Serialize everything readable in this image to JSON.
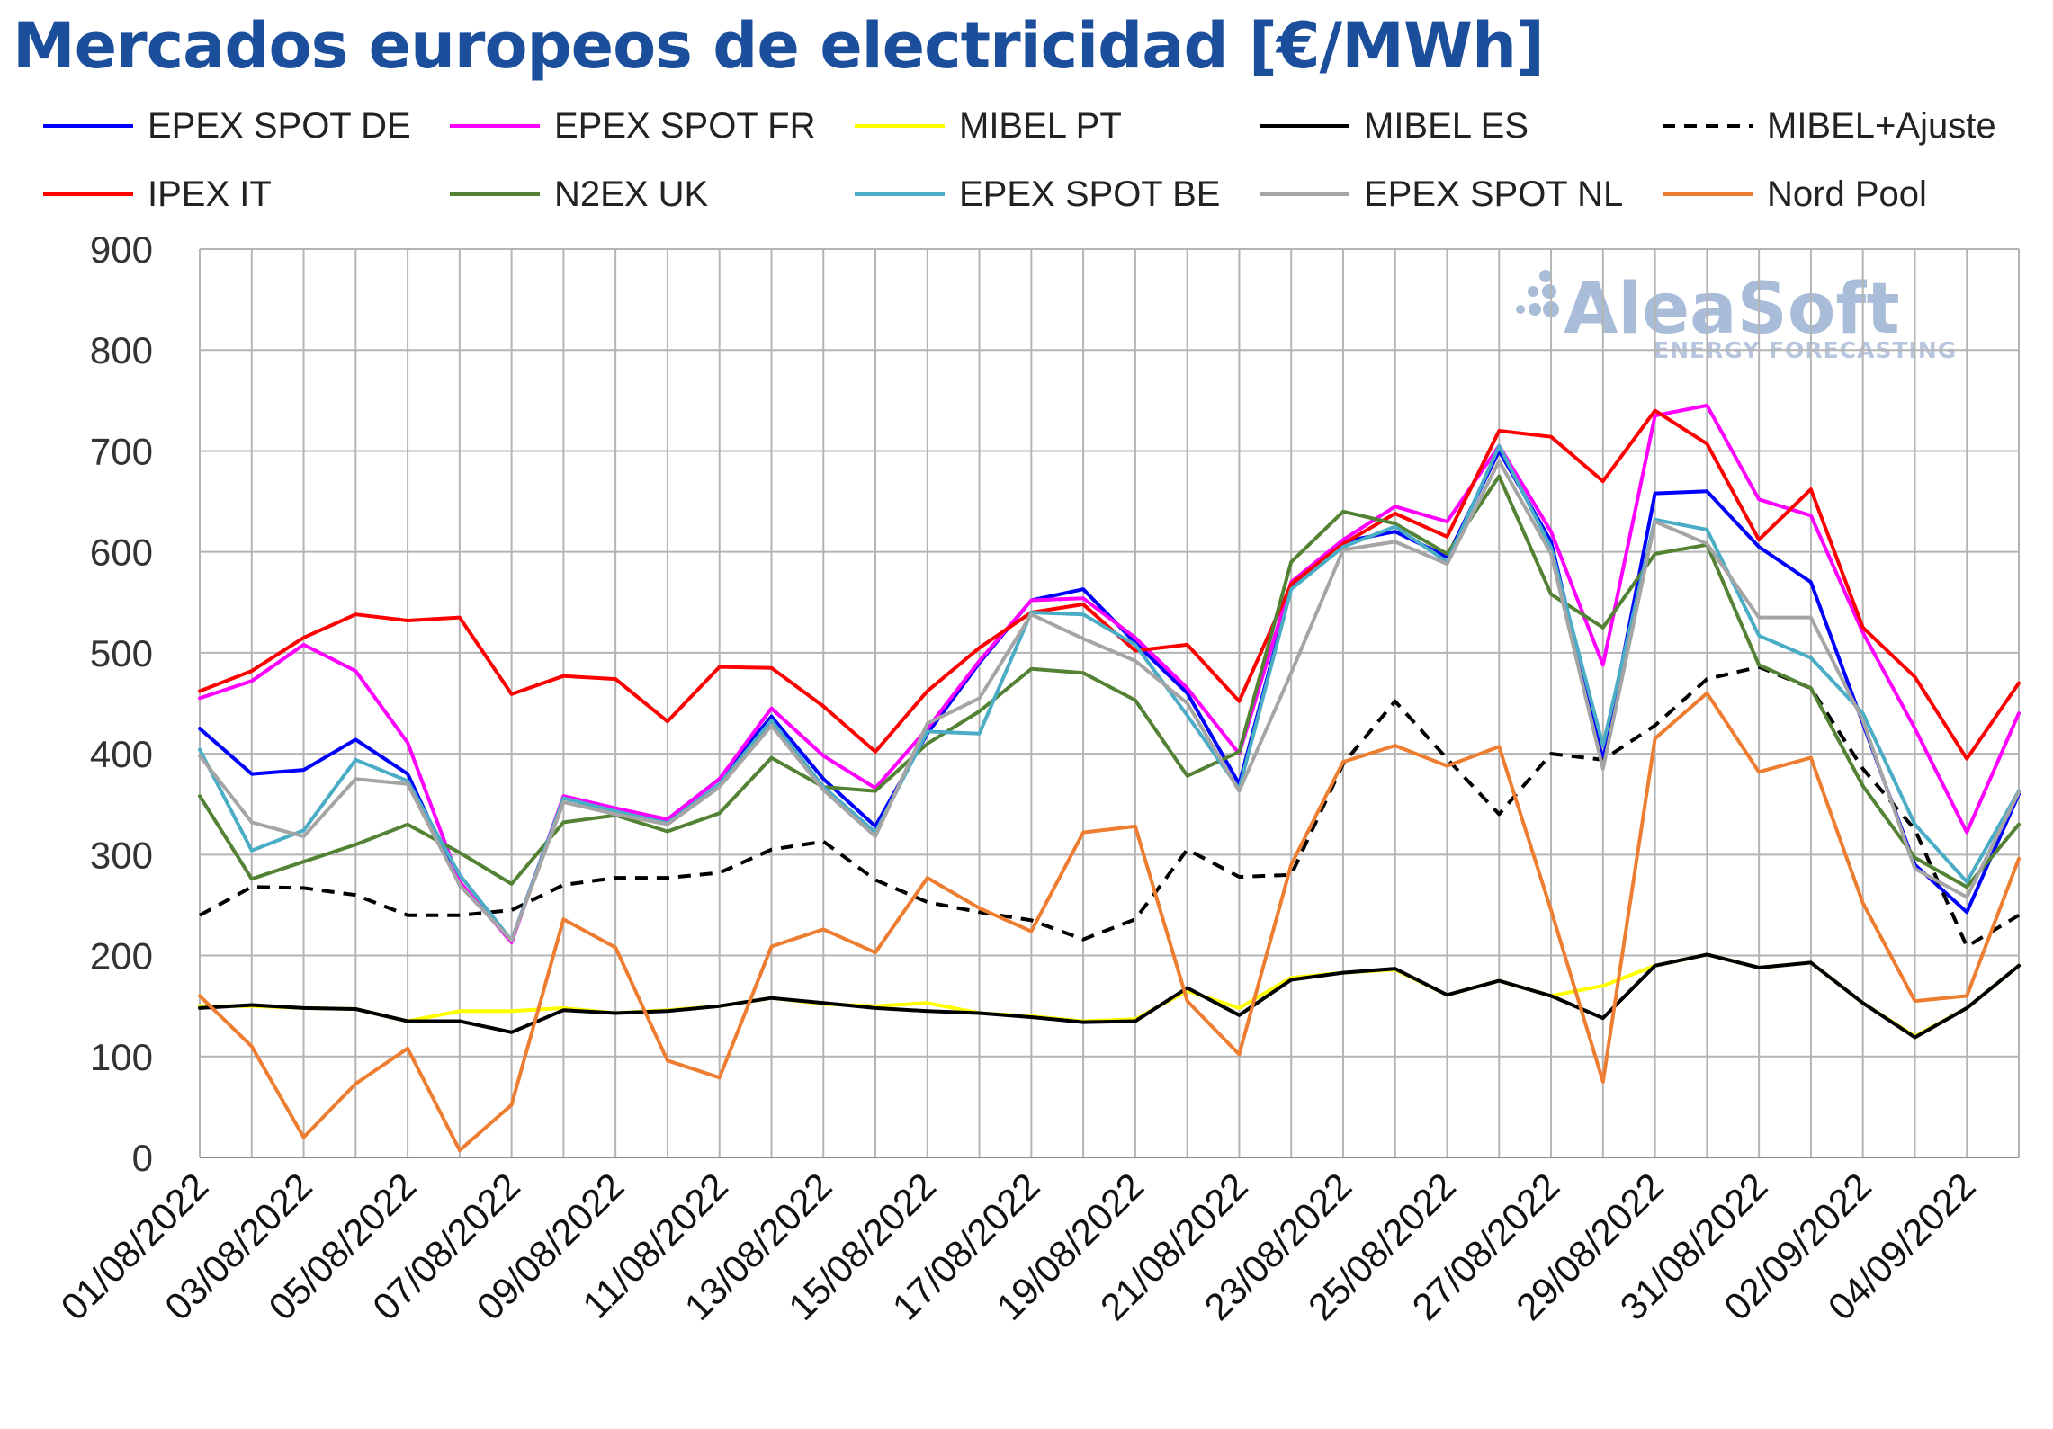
{
  "chart_data": {
    "type": "line",
    "title": "Mercados europeos de electricidad [€/MWh]",
    "ylim": [
      0,
      900
    ],
    "y_ticks": [
      "0",
      "100",
      "200",
      "300",
      "400",
      "500",
      "600",
      "700",
      "800",
      "900"
    ],
    "grid": true,
    "legend_position": "top",
    "x": [
      "01/08/2022",
      "02/08/2022",
      "03/08/2022",
      "04/08/2022",
      "05/08/2022",
      "06/08/2022",
      "07/08/2022",
      "08/08/2022",
      "09/08/2022",
      "10/08/2022",
      "11/08/2022",
      "12/08/2022",
      "13/08/2022",
      "14/08/2022",
      "15/08/2022",
      "16/08/2022",
      "17/08/2022",
      "18/08/2022",
      "19/08/2022",
      "20/08/2022",
      "21/08/2022",
      "22/08/2022",
      "23/08/2022",
      "24/08/2022",
      "25/08/2022",
      "26/08/2022",
      "27/08/2022",
      "28/08/2022",
      "29/08/2022",
      "30/08/2022",
      "31/08/2022",
      "01/09/2022",
      "02/09/2022",
      "03/09/2022",
      "04/09/2022",
      "05/09/2022"
    ],
    "x_tick_labels": [
      "01/08/2022",
      "03/08/2022",
      "05/08/2022",
      "07/08/2022",
      "09/08/2022",
      "11/08/2022",
      "13/08/2022",
      "15/08/2022",
      "17/08/2022",
      "19/08/2022",
      "21/08/2022",
      "23/08/2022",
      "25/08/2022",
      "27/08/2022",
      "29/08/2022",
      "31/08/2022",
      "02/09/2022",
      "04/09/2022"
    ],
    "series": [
      {
        "name": "EPEX SPOT DE",
        "color": "#0000ff",
        "dash": "solid",
        "values": [
          425,
          380,
          384,
          414,
          380,
          270,
          215,
          357,
          345,
          335,
          375,
          437,
          375,
          328,
          420,
          490,
          552,
          563,
          510,
          460,
          370,
          565,
          610,
          620,
          595,
          700,
          610,
          393,
          658,
          660,
          605,
          570,
          430,
          290,
          243,
          360
        ]
      },
      {
        "name": "EPEX SPOT FR",
        "color": "#ff00ff",
        "dash": "solid",
        "values": [
          455,
          472,
          508,
          482,
          411,
          273,
          213,
          358,
          346,
          335,
          375,
          445,
          398,
          366,
          425,
          492,
          552,
          554,
          515,
          465,
          400,
          570,
          612,
          645,
          630,
          705,
          620,
          488,
          735,
          745,
          652,
          636,
          520,
          425,
          322,
          440
        ]
      },
      {
        "name": "MIBEL PT",
        "color": "#ffff00",
        "dash": "solid",
        "values": [
          150,
          150,
          148,
          147,
          135,
          145,
          145,
          148,
          143,
          146,
          150,
          158,
          152,
          150,
          153,
          143,
          140,
          135,
          137,
          165,
          148,
          178,
          183,
          186,
          161,
          175,
          160,
          170,
          190,
          201,
          188,
          193,
          153,
          120,
          148,
          190
        ]
      },
      {
        "name": "MIBEL ES",
        "color": "#000000",
        "dash": "solid",
        "values": [
          148,
          151,
          148,
          147,
          135,
          135,
          124,
          146,
          143,
          145,
          150,
          158,
          153,
          148,
          145,
          143,
          139,
          134,
          135,
          168,
          141,
          176,
          183,
          187,
          161,
          175,
          160,
          138,
          190,
          201,
          188,
          193,
          153,
          119,
          148,
          190
        ]
      },
      {
        "name": "MIBEL+Ajuste",
        "color": "#000000",
        "dash": "dashed",
        "values": [
          240,
          268,
          267,
          260,
          240,
          240,
          245,
          270,
          277,
          277,
          282,
          305,
          313,
          275,
          253,
          243,
          235,
          216,
          236,
          305,
          278,
          280,
          390,
          452,
          395,
          340,
          400,
          394,
          428,
          474,
          486,
          465,
          385,
          325,
          209,
          240
        ]
      },
      {
        "name": "IPEX IT",
        "color": "#ff0000",
        "dash": "solid",
        "values": [
          462,
          482,
          515,
          538,
          532,
          535,
          459,
          477,
          474,
          432,
          486,
          485,
          447,
          402,
          462,
          505,
          540,
          548,
          502,
          508,
          452,
          568,
          608,
          638,
          615,
          720,
          714,
          670,
          740,
          707,
          612,
          662,
          525,
          476,
          395,
          470
        ]
      },
      {
        "name": "N2EX UK",
        "color": "#548235",
        "dash": "solid",
        "values": [
          358,
          276,
          293,
          310,
          330,
          302,
          271,
          332,
          339,
          323,
          341,
          396,
          367,
          363,
          410,
          442,
          484,
          480,
          453,
          378,
          402,
          590,
          640,
          628,
          598,
          675,
          558,
          525,
          598,
          607,
          488,
          465,
          368,
          297,
          268,
          330
        ]
      },
      {
        "name": "EPEX SPOT BE",
        "color": "#4bacc6",
        "dash": "solid",
        "values": [
          404,
          304,
          324,
          394,
          373,
          280,
          215,
          356,
          343,
          331,
          370,
          433,
          367,
          322,
          422,
          420,
          540,
          538,
          508,
          438,
          365,
          563,
          605,
          625,
          590,
          705,
          604,
          408,
          632,
          622,
          517,
          495,
          440,
          330,
          273,
          363
        ]
      },
      {
        "name": "EPEX SPOT NL",
        "color": "#a5a5a5",
        "dash": "solid",
        "values": [
          398,
          332,
          318,
          375,
          370,
          270,
          215,
          352,
          340,
          330,
          367,
          428,
          364,
          318,
          430,
          455,
          538,
          514,
          492,
          450,
          363,
          480,
          602,
          610,
          588,
          690,
          598,
          385,
          630,
          608,
          535,
          535,
          433,
          286,
          258,
          362
        ]
      },
      {
        "name": "Nord Pool",
        "color": "#ed7d31",
        "dash": "solid",
        "values": [
          160,
          110,
          20,
          73,
          108,
          7,
          52,
          236,
          208,
          96,
          79,
          209,
          226,
          203,
          277,
          247,
          224,
          322,
          328,
          155,
          102,
          290,
          392,
          408,
          388,
          407,
          245,
          75,
          415,
          460,
          382,
          396,
          252,
          155,
          160,
          296
        ]
      }
    ]
  },
  "watermark": {
    "brand": "AleaSoft",
    "tagline": "ENERGY FORECASTING"
  }
}
